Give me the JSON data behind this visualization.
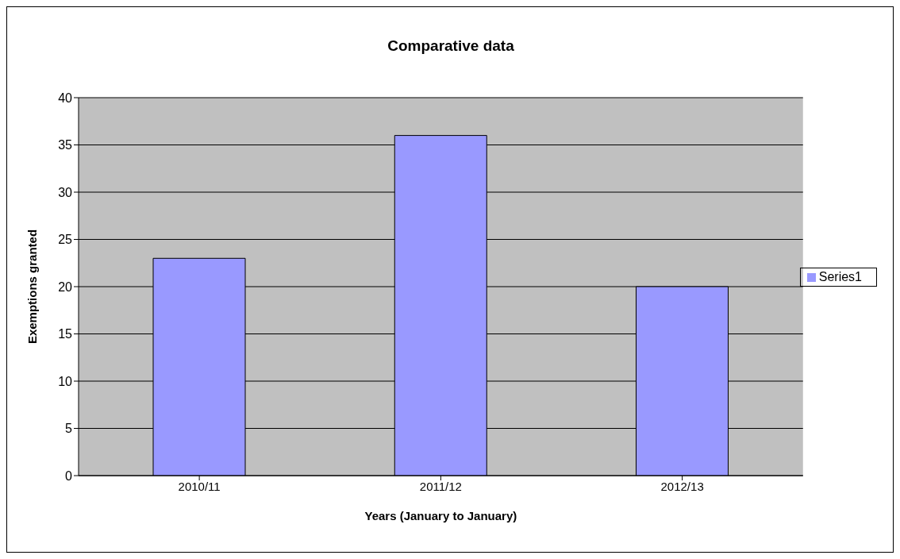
{
  "chart_data": {
    "type": "bar",
    "title": "Comparative data",
    "xlabel": "Years (January to January)",
    "ylabel": "Exemptions granted",
    "categories": [
      "2010/11",
      "2011/12",
      "2012/13"
    ],
    "series": [
      {
        "name": "Series1",
        "color": "#9999ff",
        "values": [
          23,
          36,
          20
        ]
      }
    ],
    "ylim": [
      0,
      40
    ],
    "yticks": [
      0,
      5,
      10,
      15,
      20,
      25,
      30,
      35,
      40
    ],
    "grid": "y",
    "legend": "right"
  }
}
